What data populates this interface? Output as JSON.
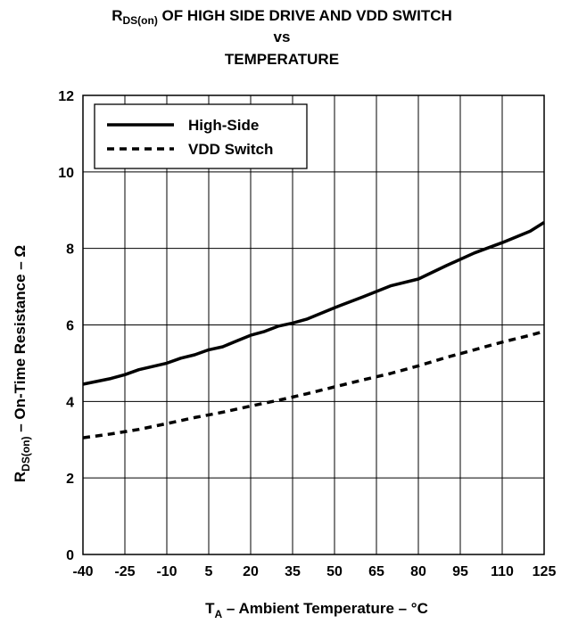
{
  "chart_data": {
    "type": "line",
    "title": {
      "line1_main": "R",
      "line1_sub": "DS(on)",
      "line1_rest": " OF HIGH SIDE DRIVE AND VDD SWITCH",
      "line2": "vs",
      "line3": "TEMPERATURE"
    },
    "xlabel": {
      "main": "T",
      "sub": "A",
      "rest": " – Ambient Temperature – °C"
    },
    "ylabel": {
      "main": "R",
      "sub": "DS(on)",
      "rest": " – On-Time Resistance – Ω"
    },
    "xlim": [
      -40,
      125
    ],
    "ylim": [
      0,
      12
    ],
    "x_ticks": [
      -40,
      -25,
      -10,
      5,
      20,
      35,
      50,
      65,
      80,
      95,
      110,
      125
    ],
    "y_ticks": [
      0,
      2,
      4,
      6,
      8,
      10,
      12
    ],
    "grid": true,
    "legend_position": "top-left",
    "series": [
      {
        "name": "High-Side",
        "style": "solid",
        "color": "#000000",
        "x": [
          -40,
          -30,
          -25,
          -20,
          -10,
          -5,
          0,
          5,
          10,
          15,
          20,
          25,
          30,
          35,
          40,
          50,
          60,
          70,
          80,
          90,
          100,
          110,
          120,
          125
        ],
        "y": [
          4.45,
          4.6,
          4.7,
          4.83,
          5.0,
          5.13,
          5.22,
          5.35,
          5.43,
          5.58,
          5.73,
          5.83,
          5.97,
          6.05,
          6.15,
          6.45,
          6.73,
          7.02,
          7.2,
          7.55,
          7.88,
          8.15,
          8.45,
          8.68
        ]
      },
      {
        "name": "VDD Switch",
        "style": "dashed",
        "color": "#000000",
        "x": [
          -40,
          -35,
          -30,
          -20,
          -10,
          0,
          10,
          20,
          30,
          40,
          50,
          60,
          70,
          80,
          90,
          100,
          110,
          120,
          125
        ],
        "y": [
          3.05,
          3.1,
          3.15,
          3.27,
          3.42,
          3.58,
          3.72,
          3.88,
          4.03,
          4.2,
          4.38,
          4.56,
          4.73,
          4.93,
          5.15,
          5.35,
          5.55,
          5.73,
          5.83
        ]
      }
    ]
  }
}
